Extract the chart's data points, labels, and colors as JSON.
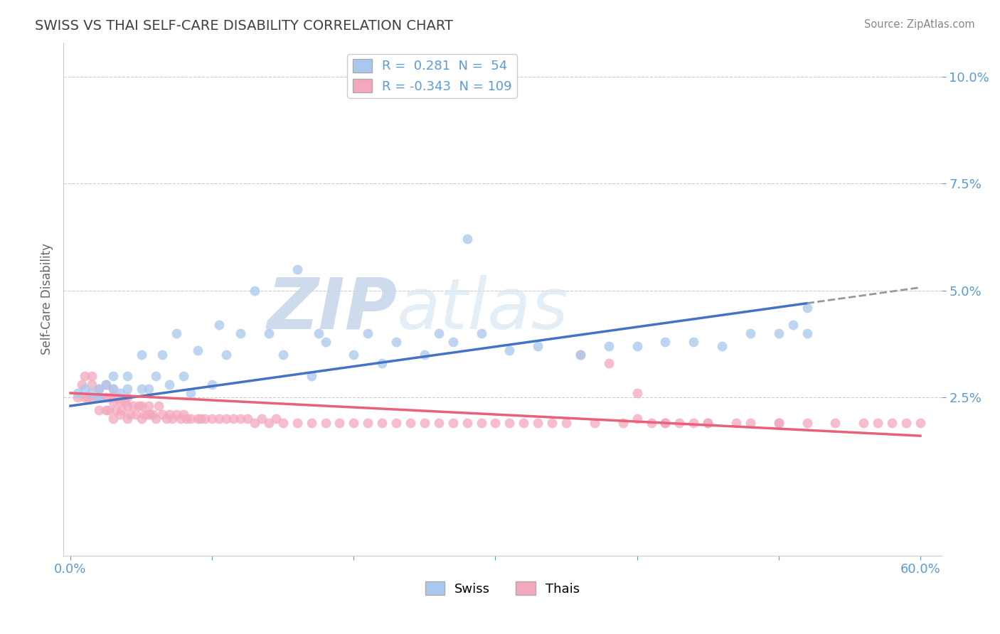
{
  "title": "SWISS VS THAI SELF-CARE DISABILITY CORRELATION CHART",
  "source_text": "Source: ZipAtlas.com",
  "ylabel": "Self-Care Disability",
  "xlim": [
    -0.005,
    0.615
  ],
  "ylim": [
    -0.012,
    0.108
  ],
  "yticks": [
    0.025,
    0.05,
    0.075,
    0.1
  ],
  "ytick_labels": [
    "2.5%",
    "5.0%",
    "7.5%",
    "10.0%"
  ],
  "xticks": [
    0.0,
    0.1,
    0.2,
    0.3,
    0.4,
    0.5,
    0.6
  ],
  "xtick_labels": [
    "0.0%",
    "",
    "",
    "",
    "",
    "",
    "60.0%"
  ],
  "swiss_R": 0.281,
  "swiss_N": 54,
  "thai_R": -0.343,
  "thai_N": 109,
  "swiss_color": "#A8C8EE",
  "thai_color": "#F4A8BC",
  "swiss_line_color": "#4472C4",
  "thai_line_color": "#E8607A",
  "grid_color": "#CCCCCC",
  "title_color": "#404040",
  "axis_color": "#5B9BD5",
  "background_color": "#FFFFFF",
  "swiss_line_start_x": 0.0,
  "swiss_line_start_y": 0.023,
  "swiss_line_end_x": 0.52,
  "swiss_line_end_y": 0.047,
  "thai_line_start_x": 0.0,
  "thai_line_start_y": 0.026,
  "thai_line_end_x": 0.6,
  "thai_line_end_y": 0.016,
  "swiss_x": [
    0.005,
    0.01,
    0.015,
    0.02,
    0.02,
    0.025,
    0.03,
    0.03,
    0.035,
    0.04,
    0.04,
    0.05,
    0.05,
    0.055,
    0.06,
    0.065,
    0.07,
    0.075,
    0.08,
    0.085,
    0.09,
    0.1,
    0.105,
    0.11,
    0.12,
    0.13,
    0.14,
    0.15,
    0.16,
    0.17,
    0.175,
    0.18,
    0.2,
    0.21,
    0.22,
    0.23,
    0.25,
    0.26,
    0.27,
    0.28,
    0.29,
    0.31,
    0.33,
    0.36,
    0.38,
    0.4,
    0.42,
    0.44,
    0.46,
    0.48,
    0.5,
    0.51,
    0.52,
    0.52
  ],
  "swiss_y": [
    0.026,
    0.027,
    0.026,
    0.027,
    0.025,
    0.028,
    0.027,
    0.03,
    0.026,
    0.027,
    0.03,
    0.027,
    0.035,
    0.027,
    0.03,
    0.035,
    0.028,
    0.04,
    0.03,
    0.026,
    0.036,
    0.028,
    0.042,
    0.035,
    0.04,
    0.05,
    0.04,
    0.035,
    0.055,
    0.03,
    0.04,
    0.038,
    0.035,
    0.04,
    0.033,
    0.038,
    0.035,
    0.04,
    0.038,
    0.062,
    0.04,
    0.036,
    0.037,
    0.035,
    0.037,
    0.037,
    0.038,
    0.038,
    0.037,
    0.04,
    0.04,
    0.042,
    0.04,
    0.046
  ],
  "thai_x": [
    0.005,
    0.008,
    0.01,
    0.01,
    0.012,
    0.015,
    0.015,
    0.015,
    0.018,
    0.02,
    0.02,
    0.022,
    0.025,
    0.025,
    0.025,
    0.027,
    0.028,
    0.03,
    0.03,
    0.03,
    0.032,
    0.033,
    0.035,
    0.035,
    0.036,
    0.038,
    0.04,
    0.04,
    0.04,
    0.042,
    0.044,
    0.046,
    0.048,
    0.05,
    0.05,
    0.052,
    0.054,
    0.055,
    0.056,
    0.058,
    0.06,
    0.062,
    0.065,
    0.068,
    0.07,
    0.072,
    0.075,
    0.078,
    0.08,
    0.082,
    0.085,
    0.09,
    0.092,
    0.095,
    0.1,
    0.105,
    0.11,
    0.115,
    0.12,
    0.125,
    0.13,
    0.135,
    0.14,
    0.145,
    0.15,
    0.16,
    0.17,
    0.18,
    0.19,
    0.2,
    0.21,
    0.22,
    0.23,
    0.24,
    0.25,
    0.26,
    0.27,
    0.28,
    0.29,
    0.3,
    0.31,
    0.32,
    0.33,
    0.34,
    0.35,
    0.36,
    0.37,
    0.38,
    0.39,
    0.4,
    0.41,
    0.42,
    0.43,
    0.44,
    0.45,
    0.47,
    0.5,
    0.52,
    0.54,
    0.56,
    0.57,
    0.58,
    0.59,
    0.6,
    0.4,
    0.42,
    0.45,
    0.48,
    0.5
  ],
  "thai_y": [
    0.025,
    0.028,
    0.025,
    0.03,
    0.025,
    0.028,
    0.025,
    0.03,
    0.025,
    0.022,
    0.027,
    0.025,
    0.022,
    0.025,
    0.028,
    0.022,
    0.025,
    0.02,
    0.024,
    0.027,
    0.022,
    0.025,
    0.021,
    0.024,
    0.022,
    0.024,
    0.02,
    0.023,
    0.025,
    0.021,
    0.023,
    0.021,
    0.023,
    0.02,
    0.023,
    0.021,
    0.021,
    0.023,
    0.021,
    0.021,
    0.02,
    0.023,
    0.021,
    0.02,
    0.021,
    0.02,
    0.021,
    0.02,
    0.021,
    0.02,
    0.02,
    0.02,
    0.02,
    0.02,
    0.02,
    0.02,
    0.02,
    0.02,
    0.02,
    0.02,
    0.019,
    0.02,
    0.019,
    0.02,
    0.019,
    0.019,
    0.019,
    0.019,
    0.019,
    0.019,
    0.019,
    0.019,
    0.019,
    0.019,
    0.019,
    0.019,
    0.019,
    0.019,
    0.019,
    0.019,
    0.019,
    0.019,
    0.019,
    0.019,
    0.019,
    0.035,
    0.019,
    0.033,
    0.019,
    0.02,
    0.019,
    0.019,
    0.019,
    0.019,
    0.019,
    0.019,
    0.019,
    0.019,
    0.019,
    0.019,
    0.019,
    0.019,
    0.019,
    0.019,
    0.026,
    0.019,
    0.019,
    0.019,
    0.019
  ]
}
